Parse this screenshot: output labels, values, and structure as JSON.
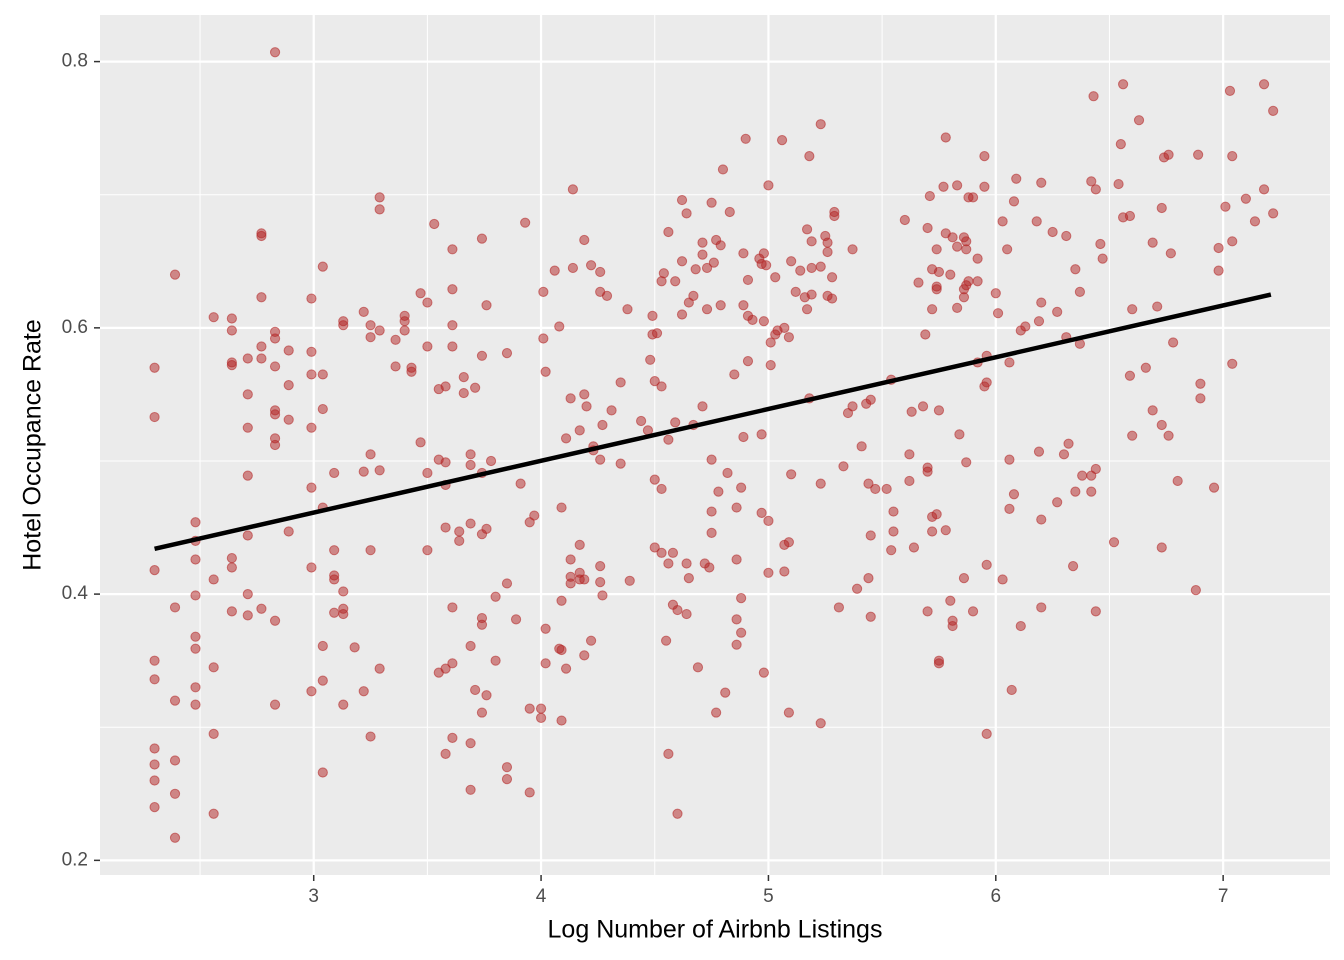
{
  "chart_data": {
    "type": "scatter",
    "x_label": "Log Number of Airbnb Listings",
    "y_label": "Hotel Occupance Rate",
    "xlim": [
      2.06,
      7.47
    ],
    "ylim": [
      0.189,
      0.835
    ],
    "xticks": [
      3,
      4,
      5,
      6,
      7
    ],
    "yticks": [
      0.2,
      0.4,
      0.6,
      0.8
    ],
    "grid": true,
    "color": "#b22222",
    "x": [
      2.3,
      2.3,
      2.3,
      2.3,
      2.3,
      2.3,
      2.3,
      2.3,
      2.3,
      2.39,
      2.39,
      2.39,
      2.39,
      2.39,
      2.39,
      2.48,
      2.48,
      2.48,
      2.48,
      2.48,
      2.48,
      2.48,
      2.48,
      2.56,
      2.56,
      2.56,
      2.56,
      2.56,
      2.64,
      2.64,
      2.64,
      2.64,
      2.64,
      2.64,
      2.64,
      2.71,
      2.71,
      2.71,
      2.71,
      2.71,
      2.71,
      2.71,
      2.77,
      2.77,
      2.77,
      2.77,
      2.77,
      2.77,
      2.83,
      2.83,
      2.83,
      2.83,
      2.83,
      2.83,
      2.83,
      2.83,
      2.83,
      2.83,
      2.89,
      2.89,
      2.89,
      2.89,
      2.99,
      2.99,
      2.99,
      2.99,
      2.99,
      2.99,
      2.99,
      3.04,
      3.04,
      3.04,
      3.04,
      3.04,
      3.04,
      3.04,
      3.09,
      3.09,
      3.09,
      3.09,
      3.09,
      3.13,
      3.13,
      3.13,
      3.13,
      3.13,
      3.13,
      3.18,
      3.22,
      3.22,
      3.22,
      3.25,
      3.25,
      3.25,
      3.25,
      3.25,
      3.29,
      3.29,
      3.29,
      3.29,
      3.29,
      3.36,
      3.36,
      3.4,
      3.4,
      3.4,
      3.43,
      3.43,
      3.47,
      3.47,
      3.5,
      3.5,
      3.5,
      3.5,
      3.53,
      3.55,
      3.55,
      3.55,
      3.58,
      3.58,
      3.58,
      3.58,
      3.58,
      3.58,
      3.61,
      3.61,
      3.61,
      3.61,
      3.61,
      3.61,
      3.61,
      3.64,
      3.64,
      3.66,
      3.66,
      3.69,
      3.69,
      3.69,
      3.69,
      3.69,
      3.69,
      3.71,
      3.71,
      3.74,
      3.74,
      3.74,
      3.74,
      3.74,
      3.74,
      3.74,
      3.76,
      3.76,
      3.76,
      3.78,
      3.8,
      3.8,
      3.85,
      3.85,
      3.85,
      3.85,
      3.89,
      3.91,
      3.93,
      3.95,
      3.95,
      3.95,
      3.97,
      4.0,
      4.0,
      4.01,
      4.01,
      4.02,
      4.02,
      4.02,
      4.06,
      4.08,
      4.08,
      4.09,
      4.09,
      4.09,
      4.09,
      4.11,
      4.11,
      4.13,
      4.13,
      4.13,
      4.13,
      4.14,
      4.14,
      4.17,
      4.17,
      4.17,
      4.17,
      4.19,
      4.19,
      4.19,
      4.19,
      4.2,
      4.22,
      4.22,
      4.23,
      4.23,
      4.26,
      4.26,
      4.26,
      4.26,
      4.26,
      4.27,
      4.27,
      4.29,
      4.31,
      4.35,
      4.35,
      4.38,
      4.39,
      4.44,
      4.47,
      4.48,
      4.49,
      4.49,
      4.5,
      4.5,
      4.5,
      4.51,
      4.53,
      4.53,
      4.53,
      4.53,
      4.54,
      4.55,
      4.56,
      4.56,
      4.56,
      4.56,
      4.58,
      4.58,
      4.59,
      4.59,
      4.6,
      4.6,
      4.62,
      4.62,
      4.62,
      4.64,
      4.64,
      4.64,
      4.65,
      4.65,
      4.67,
      4.67,
      4.68,
      4.69,
      4.71,
      4.71,
      4.71,
      4.72,
      4.73,
      4.73,
      4.74,
      4.75,
      4.75,
      4.75,
      4.75,
      4.76,
      4.77,
      4.77,
      4.78,
      4.79,
      4.79,
      4.8,
      4.81,
      4.82,
      4.83,
      4.85,
      4.86,
      4.86,
      4.86,
      4.86,
      4.88,
      4.88,
      4.88,
      4.89,
      4.89,
      4.89,
      4.9,
      4.91,
      4.91,
      4.91,
      4.93,
      4.96,
      4.97,
      4.97,
      4.97,
      4.98,
      4.98,
      4.98,
      4.99,
      5.0,
      5.0,
      5.0,
      5.01,
      5.01,
      5.03,
      5.03,
      5.04,
      5.06,
      5.07,
      5.07,
      5.07,
      5.09,
      5.09,
      5.09,
      5.1,
      5.1,
      5.12,
      5.14,
      5.16,
      5.17,
      5.17,
      5.18,
      5.18,
      5.19,
      5.19,
      5.19,
      5.23,
      5.23,
      5.23,
      5.23,
      5.25,
      5.26,
      5.26,
      5.26,
      5.28,
      5.28,
      5.29,
      5.29,
      5.31,
      5.33,
      5.35,
      5.37,
      5.37,
      5.39,
      5.41,
      5.43,
      5.44,
      5.44,
      5.45,
      5.45,
      5.45,
      5.47,
      5.52,
      5.54,
      5.54,
      5.55,
      5.55,
      5.6,
      5.62,
      5.62,
      5.63,
      5.64,
      5.66,
      5.68,
      5.69,
      5.7,
      5.7,
      5.7,
      5.7,
      5.71,
      5.72,
      5.72,
      5.72,
      5.72,
      5.74,
      5.74,
      5.74,
      5.74,
      5.75,
      5.75,
      5.75,
      5.75,
      5.77,
      5.78,
      5.78,
      5.78,
      5.8,
      5.8,
      5.81,
      5.81,
      5.81,
      5.83,
      5.83,
      5.83,
      5.84,
      5.86,
      5.86,
      5.86,
      5.86,
      5.87,
      5.87,
      5.87,
      5.87,
      5.88,
      5.88,
      5.9,
      5.9,
      5.92,
      5.92,
      5.92,
      5.95,
      5.95,
      5.95,
      5.96,
      5.96,
      5.96,
      5.96,
      6.0,
      6.01,
      6.03,
      6.03,
      6.05,
      6.06,
      6.06,
      6.06,
      6.07,
      6.08,
      6.08,
      6.09,
      6.11,
      6.11,
      6.13,
      6.18,
      6.19,
      6.19,
      6.2,
      6.2,
      6.2,
      6.2,
      6.25,
      6.27,
      6.27,
      6.3,
      6.31,
      6.31,
      6.32,
      6.34,
      6.35,
      6.35,
      6.37,
      6.37,
      6.38,
      6.42,
      6.42,
      6.42,
      6.43,
      6.44,
      6.44,
      6.44,
      6.46,
      6.47,
      6.52,
      6.54,
      6.55,
      6.56,
      6.56,
      6.59,
      6.59,
      6.6,
      6.6,
      6.63,
      6.66,
      6.69,
      6.69,
      6.71,
      6.73,
      6.73,
      6.73,
      6.74,
      6.76,
      6.76,
      6.77,
      6.78,
      6.8,
      6.88,
      6.89,
      6.9,
      6.9,
      6.96,
      6.98,
      6.98,
      7.01,
      7.03,
      7.04,
      7.04,
      7.04,
      7.1,
      7.14,
      7.18,
      7.18,
      7.22,
      7.22
    ],
    "values": [
      0.57,
      0.533,
      0.418,
      0.35,
      0.336,
      0.284,
      0.272,
      0.26,
      0.24,
      0.64,
      0.39,
      0.32,
      0.275,
      0.25,
      0.217,
      0.454,
      0.44,
      0.426,
      0.399,
      0.368,
      0.359,
      0.33,
      0.317,
      0.608,
      0.411,
      0.345,
      0.295,
      0.235,
      0.598,
      0.607,
      0.574,
      0.572,
      0.427,
      0.42,
      0.387,
      0.577,
      0.55,
      0.525,
      0.489,
      0.444,
      0.4,
      0.384,
      0.671,
      0.669,
      0.623,
      0.586,
      0.577,
      0.389,
      0.807,
      0.597,
      0.592,
      0.571,
      0.538,
      0.535,
      0.517,
      0.512,
      0.38,
      0.317,
      0.583,
      0.557,
      0.531,
      0.447,
      0.622,
      0.582,
      0.565,
      0.525,
      0.48,
      0.42,
      0.327,
      0.646,
      0.565,
      0.539,
      0.465,
      0.361,
      0.335,
      0.266,
      0.491,
      0.433,
      0.414,
      0.411,
      0.386,
      0.605,
      0.602,
      0.402,
      0.389,
      0.385,
      0.317,
      0.36,
      0.612,
      0.492,
      0.327,
      0.602,
      0.593,
      0.505,
      0.433,
      0.293,
      0.698,
      0.689,
      0.598,
      0.493,
      0.344,
      0.591,
      0.571,
      0.609,
      0.605,
      0.598,
      0.57,
      0.567,
      0.626,
      0.514,
      0.619,
      0.586,
      0.491,
      0.433,
      0.678,
      0.554,
      0.501,
      0.341,
      0.556,
      0.499,
      0.482,
      0.45,
      0.344,
      0.28,
      0.659,
      0.629,
      0.602,
      0.586,
      0.39,
      0.348,
      0.292,
      0.447,
      0.44,
      0.563,
      0.551,
      0.505,
      0.497,
      0.453,
      0.361,
      0.288,
      0.253,
      0.555,
      0.328,
      0.667,
      0.579,
      0.491,
      0.445,
      0.382,
      0.377,
      0.311,
      0.617,
      0.449,
      0.324,
      0.5,
      0.398,
      0.35,
      0.581,
      0.408,
      0.27,
      0.261,
      0.381,
      0.483,
      0.679,
      0.454,
      0.314,
      0.251,
      0.459,
      0.307,
      0.314,
      0.627,
      0.592,
      0.567,
      0.374,
      0.348,
      0.643,
      0.601,
      0.359,
      0.465,
      0.395,
      0.358,
      0.305,
      0.517,
      0.344,
      0.547,
      0.426,
      0.413,
      0.408,
      0.704,
      0.645,
      0.523,
      0.437,
      0.416,
      0.411,
      0.666,
      0.55,
      0.411,
      0.354,
      0.541,
      0.647,
      0.365,
      0.511,
      0.508,
      0.642,
      0.627,
      0.501,
      0.421,
      0.409,
      0.527,
      0.399,
      0.624,
      0.538,
      0.559,
      0.498,
      0.614,
      0.41,
      0.53,
      0.523,
      0.576,
      0.595,
      0.609,
      0.56,
      0.486,
      0.435,
      0.596,
      0.635,
      0.556,
      0.479,
      0.431,
      0.641,
      0.365,
      0.672,
      0.516,
      0.423,
      0.28,
      0.392,
      0.431,
      0.635,
      0.529,
      0.388,
      0.235,
      0.696,
      0.65,
      0.61,
      0.686,
      0.385,
      0.423,
      0.619,
      0.412,
      0.624,
      0.527,
      0.644,
      0.345,
      0.541,
      0.664,
      0.655,
      0.423,
      0.645,
      0.614,
      0.42,
      0.694,
      0.501,
      0.462,
      0.446,
      0.649,
      0.666,
      0.311,
      0.477,
      0.662,
      0.617,
      0.719,
      0.326,
      0.491,
      0.687,
      0.565,
      0.465,
      0.426,
      0.381,
      0.362,
      0.48,
      0.397,
      0.371,
      0.617,
      0.518,
      0.656,
      0.742,
      0.609,
      0.575,
      0.636,
      0.606,
      0.652,
      0.648,
      0.52,
      0.461,
      0.656,
      0.605,
      0.341,
      0.647,
      0.707,
      0.455,
      0.416,
      0.589,
      0.572,
      0.595,
      0.638,
      0.598,
      0.741,
      0.6,
      0.437,
      0.417,
      0.439,
      0.593,
      0.311,
      0.65,
      0.49,
      0.627,
      0.643,
      0.623,
      0.614,
      0.674,
      0.729,
      0.547,
      0.625,
      0.645,
      0.665,
      0.646,
      0.753,
      0.483,
      0.303,
      0.669,
      0.664,
      0.657,
      0.624,
      0.622,
      0.638,
      0.687,
      0.684,
      0.39,
      0.496,
      0.536,
      0.659,
      0.541,
      0.404,
      0.511,
      0.543,
      0.412,
      0.483,
      0.444,
      0.383,
      0.546,
      0.479,
      0.479,
      0.561,
      0.433,
      0.462,
      0.447,
      0.681,
      0.505,
      0.485,
      0.537,
      0.435,
      0.634,
      0.541,
      0.595,
      0.675,
      0.495,
      0.492,
      0.387,
      0.699,
      0.458,
      0.447,
      0.644,
      0.614,
      0.46,
      0.659,
      0.631,
      0.629,
      0.538,
      0.35,
      0.348,
      0.642,
      0.706,
      0.671,
      0.448,
      0.743,
      0.64,
      0.395,
      0.668,
      0.38,
      0.376,
      0.707,
      0.615,
      0.661,
      0.52,
      0.668,
      0.412,
      0.623,
      0.629,
      0.659,
      0.665,
      0.632,
      0.499,
      0.635,
      0.698,
      0.698,
      0.387,
      0.574,
      0.635,
      0.652,
      0.729,
      0.556,
      0.706,
      0.295,
      0.422,
      0.559,
      0.579,
      0.626,
      0.611,
      0.68,
      0.411,
      0.659,
      0.501,
      0.464,
      0.574,
      0.328,
      0.475,
      0.695,
      0.712,
      0.598,
      0.376,
      0.601,
      0.68,
      0.605,
      0.507,
      0.709,
      0.456,
      0.619,
      0.39,
      0.672,
      0.612,
      0.469,
      0.505,
      0.669,
      0.593,
      0.513,
      0.421,
      0.644,
      0.477,
      0.627,
      0.588,
      0.489,
      0.71,
      0.477,
      0.489,
      0.774,
      0.704,
      0.494,
      0.387,
      0.663,
      0.652,
      0.439,
      0.708,
      0.738,
      0.783,
      0.683,
      0.564,
      0.684,
      0.614,
      0.519,
      0.756,
      0.57,
      0.664,
      0.538,
      0.616,
      0.527,
      0.435,
      0.69,
      0.728,
      0.73,
      0.519,
      0.656,
      0.589,
      0.485,
      0.403,
      0.73,
      0.558,
      0.547,
      0.48,
      0.643,
      0.66,
      0.691,
      0.778,
      0.665,
      0.729,
      0.573,
      0.697,
      0.68,
      0.783,
      0.704,
      0.763,
      0.686
    ],
    "trend": {
      "x": [
        2.3,
        7.21
      ],
      "values": [
        0.434,
        0.625
      ],
      "color": "#000000"
    }
  }
}
